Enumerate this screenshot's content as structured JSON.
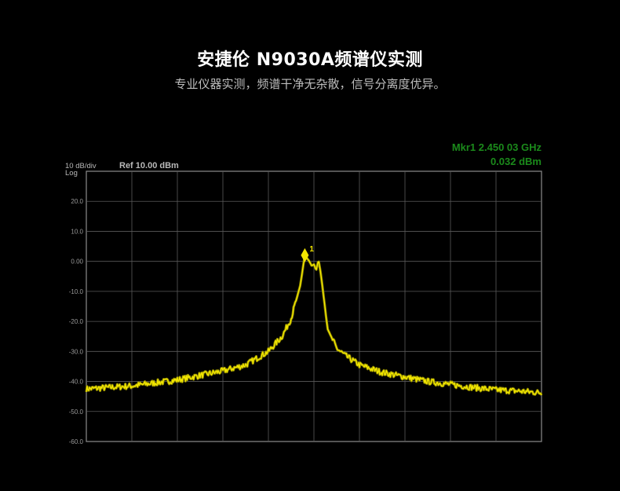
{
  "header": {
    "title": "安捷伦 N9030A频谱仪实测",
    "subtitle": "专业仪器实测，频谱干净无杂散，信号分离度优异。"
  },
  "chart_data": {
    "type": "line",
    "scale_label": "10 dB/div",
    "scale_type": "Log",
    "ref_level": "Ref 10.00 dBm",
    "marker": {
      "readout_line1": "Mkr1 2.450 03 GHz",
      "readout_line2": "0.032 dBm",
      "label": "1",
      "level_dbm": 0.032
    },
    "ylim": [
      -60,
      30
    ],
    "y_ticks": [
      "20.0",
      "10.0",
      "0.00",
      "-10.0",
      "-20.0",
      "-30.0",
      "-40.0",
      "-50.0",
      "-60.0"
    ],
    "x_divisions": 10,
    "grid": true,
    "colors": {
      "trace": "#f2e600",
      "trace_shadow": "#8a8400",
      "grid": "#5a5a5a",
      "frame": "#8c8c8c",
      "marker_text": "#1b8a1b"
    },
    "series": [
      {
        "x": [
          0.0,
          0.5,
          1.0,
          1.5,
          2.0,
          2.5,
          3.0,
          3.5,
          4.0,
          4.3,
          4.5,
          4.7,
          4.8,
          4.9,
          4.95,
          5.0,
          5.05,
          5.1,
          5.15,
          5.2,
          5.3,
          5.5,
          5.7,
          6.0,
          6.5,
          7.0,
          7.5,
          8.0,
          8.5,
          9.0,
          9.5,
          10.0
        ],
        "y": [
          -42.5,
          -42.0,
          -41.5,
          -40.5,
          -39.5,
          -38.0,
          -36.5,
          -34.5,
          -30.0,
          -25.0,
          -19.0,
          -8.0,
          2.0,
          0.0,
          -1.5,
          -1.0,
          -3.0,
          0.5,
          -4.0,
          -10.0,
          -22.5,
          -29.0,
          -31.5,
          -34.5,
          -37.0,
          -38.5,
          -40.0,
          -41.0,
          -42.0,
          -42.8,
          -43.2,
          -43.8
        ]
      }
    ]
  }
}
